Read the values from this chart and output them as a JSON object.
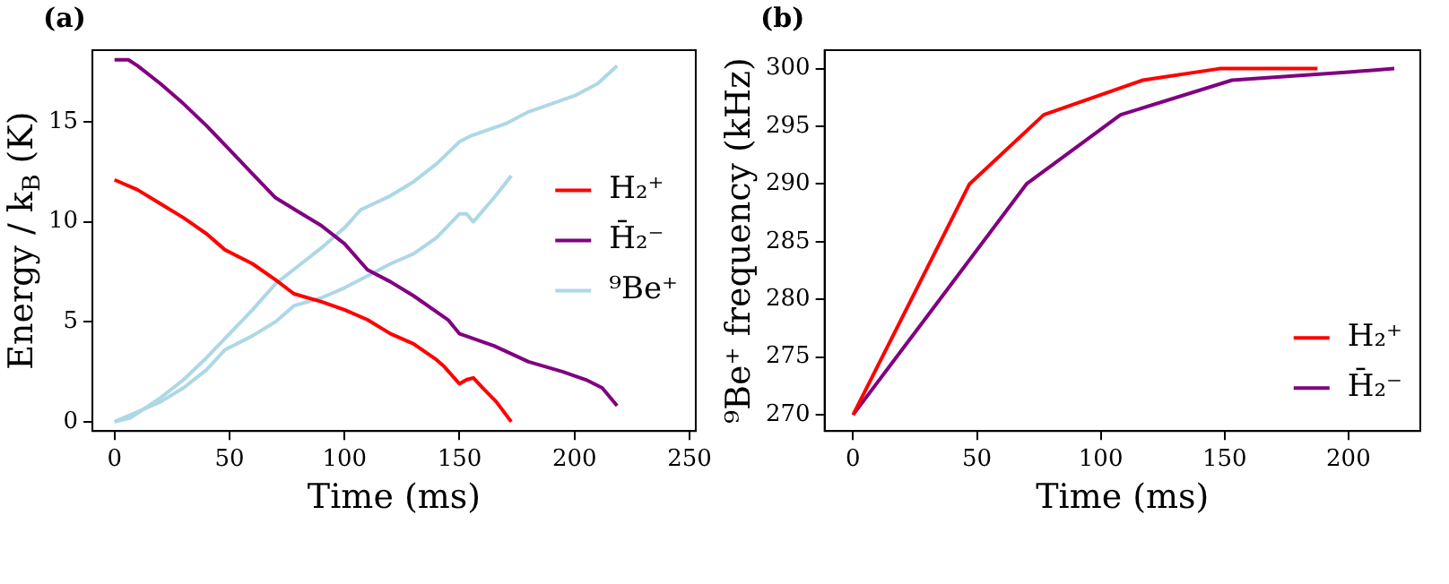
{
  "chart_data": [
    {
      "type": "line",
      "title": "(a)",
      "xlabel": "Time (ms)",
      "ylabel": "Energy / k$_{B}$ (K)",
      "xlim": [
        -9.6,
        252.7
      ],
      "ylim": [
        -0.46,
        18.58
      ],
      "xticks": [
        0,
        50,
        100,
        150,
        200,
        250
      ],
      "yticks": [
        0,
        5,
        10,
        15
      ],
      "grid": false,
      "legend": "right",
      "series": [
        {
          "name": "H₂⁺",
          "color": "#ff0000",
          "x": [
            0,
            10,
            20,
            30,
            40,
            48,
            60,
            70,
            78,
            90,
            100,
            110,
            120,
            130,
            140,
            143,
            150,
            153,
            156,
            160,
            166,
            172.5
          ],
          "values": [
            12.1,
            11.6,
            10.9,
            10.2,
            9.4,
            8.6,
            7.9,
            7.1,
            6.4,
            6.0,
            5.6,
            5.1,
            4.4,
            3.9,
            3.1,
            2.8,
            1.9,
            2.1,
            2.2,
            1.7,
            1.0,
            0.0
          ]
        },
        {
          "name": "H̄₂⁻",
          "color": "#800080",
          "x": [
            0,
            6,
            10,
            20,
            30,
            40,
            50,
            60,
            70,
            80,
            90,
            100,
            110,
            120,
            130,
            140,
            145,
            150,
            155,
            165,
            180,
            195,
            205,
            212,
            218.5
          ],
          "values": [
            18.1,
            18.1,
            17.8,
            16.9,
            15.9,
            14.8,
            13.6,
            12.4,
            11.2,
            10.5,
            9.8,
            8.9,
            7.6,
            7.0,
            6.3,
            5.5,
            5.1,
            4.4,
            4.2,
            3.8,
            3.0,
            2.5,
            2.1,
            1.7,
            0.8
          ]
        },
        {
          "name": "⁹Be⁺",
          "color": "#add8e6",
          "x": [
            0,
            7,
            20,
            30,
            40,
            50,
            60,
            70,
            80,
            90,
            100,
            107,
            120,
            130,
            140,
            150,
            155,
            170,
            180,
            200,
            210,
            218.5
          ],
          "values": [
            0,
            0.2,
            1.2,
            2.1,
            3.2,
            4.4,
            5.6,
            6.9,
            7.8,
            8.7,
            9.7,
            10.6,
            11.3,
            12.0,
            12.9,
            14.0,
            14.3,
            14.9,
            15.5,
            16.3,
            16.9,
            17.8
          ]
        },
        {
          "color": "#add8e6",
          "x": [
            0,
            10,
            20,
            30,
            40,
            48,
            60,
            70,
            78,
            90,
            100,
            110,
            120,
            130,
            140,
            150,
            153,
            156,
            165,
            172.5
          ],
          "values": [
            0,
            0.5,
            1.0,
            1.7,
            2.6,
            3.6,
            4.3,
            5.0,
            5.8,
            6.2,
            6.7,
            7.3,
            7.9,
            8.4,
            9.2,
            10.4,
            10.4,
            10.0,
            11.2,
            12.3
          ]
        }
      ]
    },
    {
      "type": "line",
      "title": "(b)",
      "xlabel": "Time (ms)",
      "ylabel": "⁹Be⁺ frequency (kHz)",
      "xlim": [
        -11.5,
        229
      ],
      "ylim": [
        268.6,
        301.6
      ],
      "xticks": [
        0,
        50,
        100,
        150,
        200
      ],
      "yticks": [
        270,
        275,
        280,
        285,
        290,
        295,
        300
      ],
      "grid": false,
      "legend": "lower right",
      "series": [
        {
          "name": "H₂⁺",
          "color": "#ff0000",
          "x": [
            0,
            47,
            77,
            117,
            148,
            187.5
          ],
          "values": [
            270,
            290,
            296,
            299,
            300,
            300
          ]
        },
        {
          "name": "H̄₂⁻",
          "color": "#800080",
          "x": [
            0,
            70,
            108,
            153,
            200,
            218.5
          ],
          "values": [
            270,
            290,
            296,
            299,
            299.7,
            300
          ]
        }
      ]
    }
  ]
}
